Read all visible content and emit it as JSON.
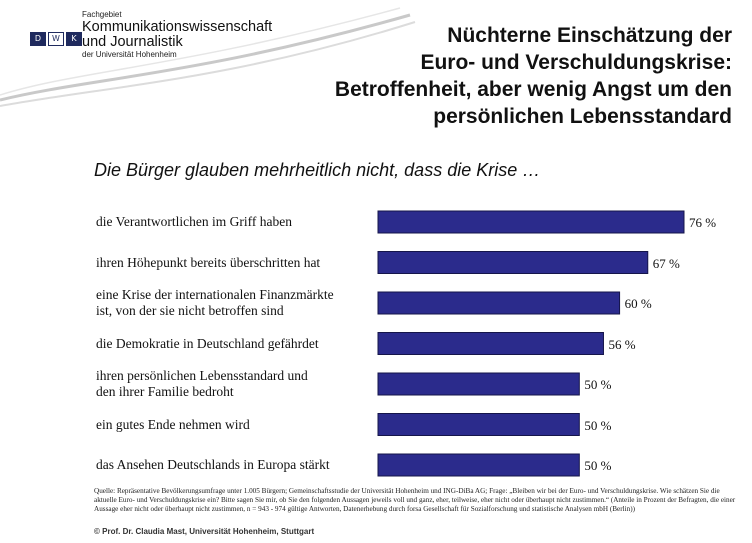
{
  "logo": {
    "marks": [
      "D",
      "W",
      "K"
    ],
    "line1": "Fachgebiet",
    "line2": "Kommunikationswissenschaft",
    "line3": "und Journalistik",
    "line4": "der Universität Hohenheim"
  },
  "title_lines": [
    "Nüchterne Einschätzung der",
    "Euro- und Verschuldungskrise:",
    "Betroffenheit, aber wenig Angst um den",
    "persönlichen Lebensstandard"
  ],
  "subtitle": "Die Bürger glauben mehrheitlich nicht, dass die Krise …",
  "chart_data": {
    "type": "bar",
    "orientation": "horizontal",
    "categories": [
      "die Verantwortlichen im Griff haben",
      "ihren Höhepunkt bereits überschritten hat",
      "eine Krise der internationalen Finanzmärkte ist, von der sie nicht betroffen sind",
      "die Demokratie in Deutschland gefährdet",
      "ihren persönlichen Lebensstandard und den ihrer Familie bedroht",
      "ein gutes Ende nehmen wird",
      "das Ansehen Deutschlands in Europa stärkt"
    ],
    "category_lines": [
      [
        "die Verantwortlichen im Griff haben"
      ],
      [
        "ihren Höhepunkt bereits überschritten hat"
      ],
      [
        "eine Krise der internationalen Finanzmärkte",
        "ist, von der sie nicht betroffen sind"
      ],
      [
        "die Demokratie in Deutschland gefährdet"
      ],
      [
        "ihren persönlichen Lebensstandard und",
        "den ihrer Familie bedroht"
      ],
      [
        "ein gutes Ende nehmen wird"
      ],
      [
        "das Ansehen Deutschlands in Europa stärkt"
      ]
    ],
    "values": [
      76,
      67,
      60,
      56,
      50,
      50,
      50
    ],
    "value_labels": [
      "76 %",
      "67 %",
      "60 %",
      "56 %",
      "50 %",
      "50 %",
      "50 %"
    ],
    "xlim": [
      0,
      76
    ],
    "bar_color": "#2b2b8c"
  },
  "source": "Quelle: Repräsentative Bevölkerungsumfrage unter 1.005 Bürgern; Gemeinschaftsstudie der Universität Hohenheim und ING-DiBa AG; Frage: „Bleiben wir bei der Euro- und Verschuldungskrise. Wie schätzen Sie die aktuelle Euro- und Verschuldungskrise ein? Bitte sagen Sie mir, ob Sie den folgenden Aussagen jeweils voll und ganz, eher, teilweise, eher nicht oder überhaupt nicht zustimmen.“ (Anteile in Prozent der Befragten, die einer Aussage eher nicht oder überhaupt nicht zustimmen, n = 943 - 974 gültige Antworten, Datenerhebung durch forsa Gesellschaft für Sozialforschung und statistische Analysen mbH (Berlin))",
  "copyright": "© Prof. Dr. Claudia Mast, Universität Hohenheim, Stuttgart"
}
